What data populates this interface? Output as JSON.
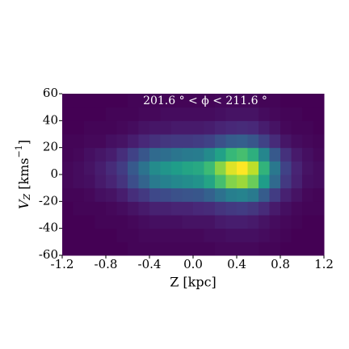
{
  "chart_data": {
    "type": "heatmap",
    "annotation": "201.6 ° < ϕ < 211.6 °",
    "xlabel": "Z [kpc]",
    "ylabel_parts": [
      "V",
      "Z",
      " [kms",
      "−1",
      "]"
    ],
    "xlim": [
      -1.2,
      1.2
    ],
    "ylim": [
      -60,
      60
    ],
    "xticks": [
      -1.2,
      -0.8,
      -0.4,
      {
        "value": 0,
        "label": "0.0"
      },
      0.4,
      0.8,
      1.2
    ],
    "yticks": [
      -60,
      -40,
      -20,
      0,
      20,
      40,
      60
    ],
    "colormap": [
      "#440154",
      "#482878",
      "#3e4989",
      "#31688e",
      "#26828e",
      "#1f9e89",
      "#35b779",
      "#6ece58",
      "#b5de2b",
      "#fde725"
    ],
    "xbins": [
      -1.2,
      -1.1,
      -1.0,
      -0.9,
      -0.8,
      -0.7,
      -0.6,
      -0.5,
      -0.4,
      -0.3,
      -0.2,
      -0.1,
      0,
      0.1,
      0.2,
      0.3,
      0.4,
      0.5,
      0.6,
      0.7,
      0.8,
      0.9,
      1.0,
      1.1,
      1.2
    ],
    "ybins": [
      -60,
      -50,
      -40,
      -30,
      -20,
      -10,
      0,
      10,
      20,
      30,
      40,
      50,
      60
    ],
    "z": [
      [
        0,
        0,
        0,
        0,
        0,
        0,
        1,
        1,
        1,
        1,
        1,
        1,
        1,
        1,
        2,
        2,
        2,
        2,
        1,
        1,
        0,
        0,
        0,
        0
      ],
      [
        0,
        0,
        0,
        0,
        0,
        1,
        1,
        2,
        2,
        2,
        2,
        2,
        2,
        3,
        3,
        4,
        4,
        4,
        3,
        2,
        1,
        0,
        0,
        0
      ],
      [
        0,
        0,
        0,
        1,
        1,
        1,
        2,
        3,
        4,
        4,
        4,
        5,
        5,
        5,
        7,
        8,
        8,
        7,
        5,
        3,
        2,
        1,
        0,
        0
      ],
      [
        0,
        1,
        1,
        1,
        2,
        3,
        5,
        7,
        9,
        9,
        10,
        10,
        11,
        12,
        15,
        17,
        18,
        16,
        12,
        7,
        4,
        2,
        1,
        1
      ],
      [
        1,
        1,
        2,
        4,
        5,
        8,
        13,
        17,
        22,
        23,
        25,
        26,
        27,
        31,
        37,
        43,
        45,
        41,
        29,
        18,
        9,
        5,
        2,
        1
      ],
      [
        2,
        3,
        4,
        7,
        10,
        15,
        24,
        32,
        41,
        44,
        47,
        49,
        51,
        58,
        70,
        81,
        85,
        77,
        55,
        34,
        17,
        9,
        4,
        3
      ],
      [
        2,
        3,
        5,
        8,
        12,
        18,
        28,
        38,
        48,
        52,
        55,
        58,
        60,
        68,
        82,
        95,
        100,
        90,
        65,
        40,
        20,
        10,
        5,
        3
      ],
      [
        1,
        2,
        4,
        6,
        8,
        13,
        20,
        27,
        34,
        36,
        39,
        41,
        42,
        48,
        57,
        67,
        70,
        63,
        46,
        28,
        14,
        7,
        4,
        2
      ],
      [
        1,
        1,
        2,
        2,
        4,
        5,
        8,
        11,
        14,
        16,
        17,
        17,
        18,
        20,
        25,
        29,
        30,
        27,
        20,
        12,
        6,
        3,
        2,
        1
      ],
      [
        0,
        0,
        1,
        1,
        1,
        2,
        3,
        5,
        6,
        6,
        7,
        7,
        7,
        8,
        10,
        11,
        12,
        11,
        8,
        5,
        2,
        1,
        1,
        0
      ],
      [
        0,
        0,
        0,
        0,
        1,
        1,
        1,
        2,
        2,
        3,
        3,
        3,
        3,
        3,
        4,
        5,
        5,
        5,
        3,
        2,
        1,
        1,
        0,
        0
      ],
      [
        0,
        0,
        0,
        0,
        0,
        0,
        1,
        1,
        1,
        1,
        1,
        1,
        1,
        1,
        2,
        2,
        2,
        2,
        1,
        1,
        0,
        0,
        0,
        0
      ]
    ]
  }
}
